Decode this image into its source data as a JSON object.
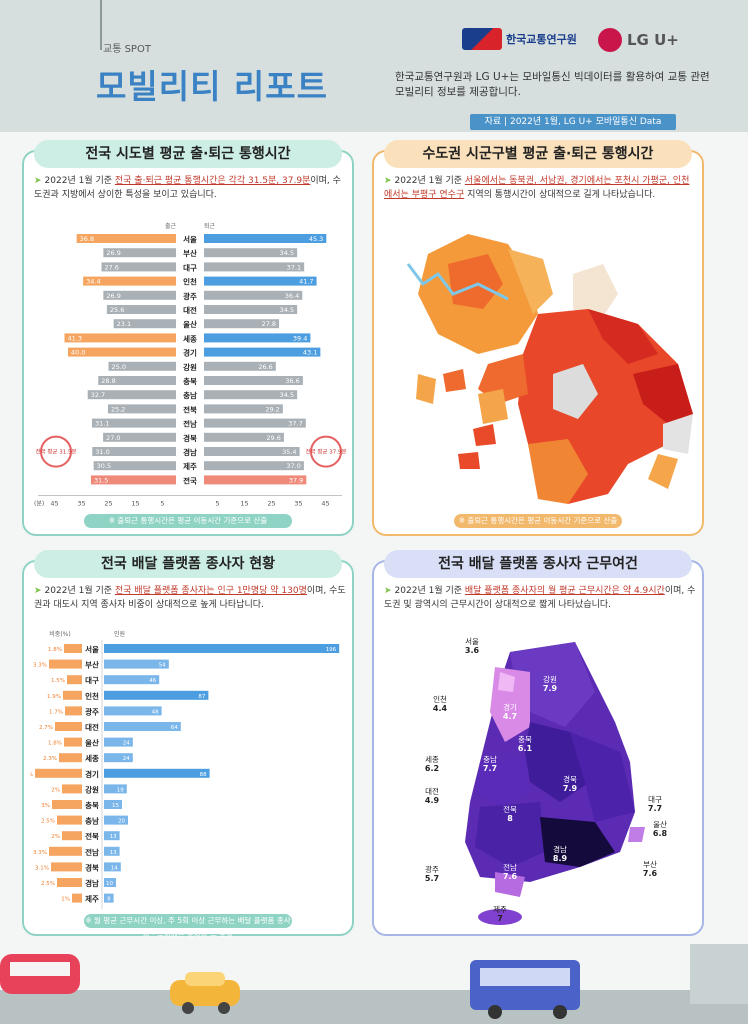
{
  "header": {
    "spot": "교통 SPOT",
    "title": "모빌리티 리포트",
    "intro": "한국교통연구원과 LG U+는 모바일통신 빅데이터를 활용하여 교통 관련 모빌리티 정보를 제공합니다.",
    "logo1": "한국교통연구원",
    "logo2": "LG U+",
    "source": "자료 | 2022년 1월, LG U+ 모바일통신 Data"
  },
  "panel1": {
    "title": "전국 시도별 평균 출·퇴근 통행시간",
    "desc_pre": "2022년 1월 기준 ",
    "desc_hl": "전국 출·퇴근 평균 통행시간은 각각 31.5분, 37.9분",
    "desc_post": "이며, 수도권과 지방에서 상이한 특성을 보이고 있습니다.",
    "left_label": "출근",
    "right_label": "퇴근",
    "avg_left": "전국 평균 31.5분",
    "avg_right": "전국 평균 37.9분",
    "axis_unit": "(분)",
    "axis_left_ticks": [
      "45",
      "35",
      "25",
      "15",
      "5"
    ],
    "axis_right_ticks": [
      "5",
      "15",
      "25",
      "35",
      "45"
    ],
    "note": "※ 출퇴근 통행시간은 평균 이동시간 기준으로 산출"
  },
  "chart1": {
    "type": "bar",
    "categories": [
      "서울",
      "부산",
      "대구",
      "인천",
      "광주",
      "대전",
      "울산",
      "세종",
      "경기",
      "강원",
      "충북",
      "충남",
      "전북",
      "전남",
      "경북",
      "경남",
      "제주",
      "전국"
    ],
    "series": [
      {
        "name": "출근",
        "values": [
          36.8,
          26.9,
          27.6,
          34.4,
          26.9,
          25.6,
          23.1,
          41.3,
          40.0,
          25.0,
          28.8,
          32.7,
          25.2,
          31.1,
          27.0,
          31.0,
          30.5,
          31.5
        ]
      },
      {
        "name": "퇴근",
        "values": [
          45.3,
          34.5,
          37.1,
          41.7,
          36.4,
          34.5,
          27.8,
          39.4,
          43.1,
          26.6,
          36.6,
          34.5,
          29.2,
          37.7,
          29.6,
          35.4,
          37.0,
          37.9
        ]
      }
    ],
    "highlight_index": [
      0,
      3,
      7,
      8,
      17
    ]
  },
  "panel2": {
    "title": "수도권 시군구별 평균 출·퇴근 통행시간",
    "desc_pre": "2022년 1월 기준 ",
    "desc_hl": "서울에서는 동북권, 서남권, 경기에서는 포천시 가평군, 인천에서는 부평구 연수구",
    "desc_post": " 지역의 통행시간이 상대적으로 길게 나타났습니다.",
    "note": "※ 출퇴근 통행시간은 평균 이동시간 기준으로 산출"
  },
  "panel3": {
    "title": "전국 배달 플랫폼 종사자 현황",
    "desc_pre": "2022년 1월 기준 ",
    "desc_hl": "전국 배달 플랫폼 종사자는 인구 1만명당 약 130명",
    "desc_post": "이며, 수도권과 대도시 지역 종사자 비중이 상대적으로 높게 나타납니다.",
    "left_label": "비중(%)",
    "right_label": "인원",
    "note": "※ 월 평균 근무시간 이상, 주 5회 이상 근무하는 배달 플랫폼 종사자 · 수치에는 종사자 수 포함"
  },
  "chart3": {
    "type": "bar",
    "categories": [
      "서울",
      "부산",
      "대구",
      "인천",
      "광주",
      "대전",
      "울산",
      "세종",
      "경기",
      "강원",
      "충북",
      "충남",
      "전북",
      "전남",
      "경북",
      "경남",
      "제주"
    ],
    "series": [
      {
        "name": "비중",
        "values": [
          1.8,
          3.3,
          1.5,
          1.9,
          1.7,
          2.7,
          1.8,
          2.3,
          4.7,
          2.0,
          3.0,
          2.5,
          2.0,
          3.3,
          3.1,
          2.5,
          1.0
        ]
      },
      {
        "name": "인원",
        "values": [
          196,
          54,
          46,
          87,
          48,
          64,
          24,
          24,
          88,
          19,
          15,
          20,
          13,
          13,
          14,
          10,
          8
        ]
      }
    ]
  },
  "panel4": {
    "title": "전국 배달 플랫폼 종사자 근무여건",
    "desc_pre": "2022년 1월 기준 ",
    "desc_hl": "배달 플랫폼 종사자의 월 평균 근무시간은 약 4.9시간",
    "desc_post": "이며, 수도권 및 광역시의 근무시간이 상대적으로 짧게 나타났습니다.",
    "regions": [
      {
        "name": "서울",
        "value": "3.6"
      },
      {
        "name": "인천",
        "value": "4.4"
      },
      {
        "name": "경기",
        "value": "4.7"
      },
      {
        "name": "강원",
        "value": "7.9"
      },
      {
        "name": "세종",
        "value": "6.2"
      },
      {
        "name": "충북",
        "value": "6.1"
      },
      {
        "name": "충남",
        "value": "7.7"
      },
      {
        "name": "대전",
        "value": "4.9"
      },
      {
        "name": "경북",
        "value": "7.9"
      },
      {
        "name": "대구",
        "value": "7.7"
      },
      {
        "name": "전북",
        "value": "8"
      },
      {
        "name": "울산",
        "value": "6.8"
      },
      {
        "name": "경남",
        "value": "8.9"
      },
      {
        "name": "광주",
        "value": "5.7"
      },
      {
        "name": "전남",
        "value": "7.6"
      },
      {
        "name": "부산",
        "value": "7.6"
      },
      {
        "name": "제주",
        "value": "7"
      }
    ]
  }
}
